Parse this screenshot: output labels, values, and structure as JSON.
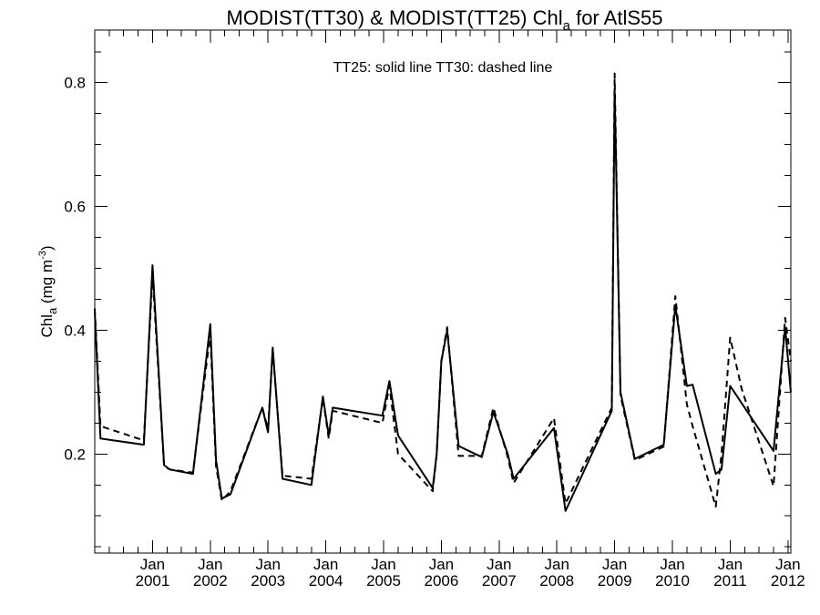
{
  "chart_data": {
    "type": "line",
    "title": {
      "main": "MODIST(TT30) & MODIST(TT25)  Chl",
      "sub": "a",
      "suffix": " for AtlS55"
    },
    "annotation": "TT25: solid line   TT30: dashed line",
    "ylabel": {
      "main": "Chl",
      "sub": "a",
      "unit": " (mg m",
      "sup": "-3",
      "close": ")"
    },
    "x_axis": {
      "start_year": 2000.0,
      "end_year": 2012.05,
      "tick_labels": [
        {
          "year": 2001,
          "line1": "Jan",
          "line2": "2001"
        },
        {
          "year": 2002,
          "line1": "Jan",
          "line2": "2002"
        },
        {
          "year": 2003,
          "line1": "Jan",
          "line2": "2003"
        },
        {
          "year": 2004,
          "line1": "Jan",
          "line2": "2004"
        },
        {
          "year": 2005,
          "line1": "Jan",
          "line2": "2005"
        },
        {
          "year": 2006,
          "line1": "Jan",
          "line2": "2006"
        },
        {
          "year": 2007,
          "line1": "Jan",
          "line2": "2007"
        },
        {
          "year": 2008,
          "line1": "Jan",
          "line2": "2008"
        },
        {
          "year": 2009,
          "line1": "Jan",
          "line2": "2009"
        },
        {
          "year": 2010,
          "line1": "Jan",
          "line2": "2010"
        },
        {
          "year": 2011,
          "line1": "Jan",
          "line2": "2011"
        },
        {
          "year": 2012,
          "line1": "Jan",
          "line2": "2012"
        }
      ]
    },
    "y_axis": {
      "ylim": [
        0.04,
        0.885
      ],
      "major_ticks": [
        0.2,
        0.4,
        0.6,
        0.8
      ],
      "major_labels": [
        "0.2",
        "0.4",
        "0.6",
        "0.8"
      ],
      "minor_ticks": [
        0.05,
        0.1,
        0.15,
        0.25,
        0.3,
        0.35,
        0.45,
        0.5,
        0.55,
        0.65,
        0.7,
        0.75,
        0.85
      ]
    },
    "series": [
      {
        "name": "TT25",
        "style": "solid",
        "points": [
          [
            2000.0,
            0.43
          ],
          [
            2000.1,
            0.225
          ],
          [
            2000.85,
            0.215
          ],
          [
            2001.0,
            0.505
          ],
          [
            2001.2,
            0.182
          ],
          [
            2001.3,
            0.175
          ],
          [
            2001.7,
            0.168
          ],
          [
            2002.0,
            0.41
          ],
          [
            2002.1,
            0.19
          ],
          [
            2002.2,
            0.128
          ],
          [
            2002.35,
            0.135
          ],
          [
            2002.9,
            0.275
          ],
          [
            2003.0,
            0.235
          ],
          [
            2003.08,
            0.372
          ],
          [
            2003.25,
            0.16
          ],
          [
            2003.75,
            0.15
          ],
          [
            2003.95,
            0.293
          ],
          [
            2004.05,
            0.23
          ],
          [
            2004.12,
            0.275
          ],
          [
            2004.98,
            0.262
          ],
          [
            2005.1,
            0.318
          ],
          [
            2005.25,
            0.23
          ],
          [
            2005.85,
            0.145
          ],
          [
            2005.92,
            0.2
          ],
          [
            2006.0,
            0.35
          ],
          [
            2006.1,
            0.4
          ],
          [
            2006.3,
            0.213
          ],
          [
            2006.7,
            0.195
          ],
          [
            2006.9,
            0.268
          ],
          [
            2007.15,
            0.2
          ],
          [
            2007.25,
            0.16
          ],
          [
            2007.95,
            0.242
          ],
          [
            2008.15,
            0.108
          ],
          [
            2008.95,
            0.27
          ],
          [
            2009.0,
            0.79
          ],
          [
            2009.1,
            0.3
          ],
          [
            2009.35,
            0.192
          ],
          [
            2009.85,
            0.215
          ],
          [
            2010.05,
            0.44
          ],
          [
            2010.25,
            0.31
          ],
          [
            2010.35,
            0.312
          ],
          [
            2010.75,
            0.168
          ],
          [
            2010.85,
            0.175
          ],
          [
            2011.0,
            0.31
          ],
          [
            2011.75,
            0.205
          ],
          [
            2011.95,
            0.405
          ],
          [
            2012.05,
            0.3
          ]
        ]
      },
      {
        "name": "TT30",
        "style": "dashed",
        "points": [
          [
            2000.0,
            0.435
          ],
          [
            2000.1,
            0.245
          ],
          [
            2000.85,
            0.222
          ],
          [
            2001.0,
            0.49
          ],
          [
            2001.2,
            0.18
          ],
          [
            2001.3,
            0.175
          ],
          [
            2001.7,
            0.17
          ],
          [
            2002.0,
            0.395
          ],
          [
            2002.1,
            0.18
          ],
          [
            2002.2,
            0.125
          ],
          [
            2002.35,
            0.14
          ],
          [
            2002.9,
            0.275
          ],
          [
            2003.0,
            0.24
          ],
          [
            2003.08,
            0.368
          ],
          [
            2003.25,
            0.165
          ],
          [
            2003.75,
            0.16
          ],
          [
            2003.95,
            0.29
          ],
          [
            2004.05,
            0.225
          ],
          [
            2004.12,
            0.27
          ],
          [
            2004.98,
            0.25
          ],
          [
            2005.1,
            0.31
          ],
          [
            2005.25,
            0.2
          ],
          [
            2005.85,
            0.14
          ],
          [
            2005.92,
            0.2
          ],
          [
            2006.0,
            0.35
          ],
          [
            2006.1,
            0.405
          ],
          [
            2006.3,
            0.197
          ],
          [
            2006.7,
            0.197
          ],
          [
            2006.9,
            0.275
          ],
          [
            2007.15,
            0.195
          ],
          [
            2007.25,
            0.153
          ],
          [
            2007.95,
            0.258
          ],
          [
            2008.15,
            0.12
          ],
          [
            2008.95,
            0.275
          ],
          [
            2009.0,
            0.815
          ],
          [
            2009.1,
            0.295
          ],
          [
            2009.35,
            0.19
          ],
          [
            2009.85,
            0.212
          ],
          [
            2010.05,
            0.455
          ],
          [
            2010.25,
            0.28
          ],
          [
            2010.35,
            0.245
          ],
          [
            2010.75,
            0.115
          ],
          [
            2010.85,
            0.2
          ],
          [
            2011.0,
            0.388
          ],
          [
            2011.2,
            0.305
          ],
          [
            2011.75,
            0.148
          ],
          [
            2011.95,
            0.42
          ],
          [
            2012.05,
            0.35
          ]
        ]
      }
    ]
  }
}
